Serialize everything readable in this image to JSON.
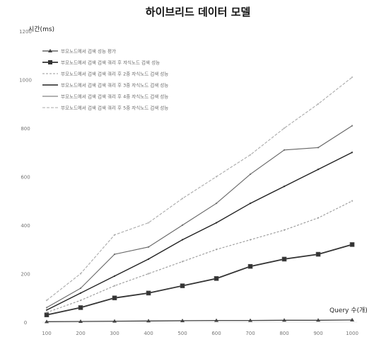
{
  "chart_data": {
    "type": "line",
    "title": "하이브리드 데이터 모델",
    "ylabel": "시간(ms)",
    "xlabel": "Query 수(개)",
    "x": [
      "100",
      "200",
      "300",
      "400",
      "500",
      "600",
      "700",
      "800",
      "900",
      "1000"
    ],
    "ylim": [
      0,
      1200
    ],
    "yticks": [
      "0",
      "200",
      "400",
      "600",
      "800",
      "1000",
      "1200"
    ],
    "grid": false,
    "legend_position": "top-left",
    "series": [
      {
        "name": "부모노드에서 검색 성능 평가",
        "marker": "triangle",
        "color": "#444444",
        "dash": "",
        "width": 1.3,
        "values": [
          2,
          3,
          4,
          5,
          6,
          7,
          7,
          8,
          8,
          9
        ]
      },
      {
        "name": "부모노드에서 검색 검색 쿼리 후 자식노드 검색 성능",
        "marker": "square",
        "color": "#333333",
        "dash": "",
        "width": 1.8,
        "values": [
          30,
          60,
          100,
          120,
          150,
          180,
          230,
          260,
          280,
          320
        ]
      },
      {
        "name": "부모노드에서 검색 검색 쿼리 후 2중 자식노드 검색 성능",
        "marker": "none",
        "color": "#999999",
        "dash": "3,2",
        "width": 1.1,
        "values": [
          40,
          90,
          150,
          200,
          250,
          300,
          340,
          380,
          430,
          500
        ]
      },
      {
        "name": "부모노드에서 검색 검색 쿼리 후 3중 자식노드 검색 성능",
        "marker": "none",
        "color": "#222222",
        "dash": "",
        "width": 1.4,
        "values": [
          50,
          120,
          190,
          260,
          340,
          410,
          490,
          560,
          630,
          700
        ]
      },
      {
        "name": "부모노드에서 검색 검색 쿼리 후 4중 자식노드 검색 성능",
        "marker": "none",
        "color": "#666666",
        "dash": "",
        "width": 1.1,
        "values": [
          60,
          140,
          280,
          310,
          400,
          490,
          610,
          710,
          720,
          810
        ]
      },
      {
        "name": "부모노드에서 검색 검색 쿼리 후 5중 자식노드 검색 성능",
        "marker": "none",
        "color": "#aaaaaa",
        "dash": "4,2",
        "width": 1.1,
        "values": [
          90,
          200,
          360,
          410,
          510,
          600,
          690,
          800,
          900,
          1010
        ]
      }
    ]
  }
}
